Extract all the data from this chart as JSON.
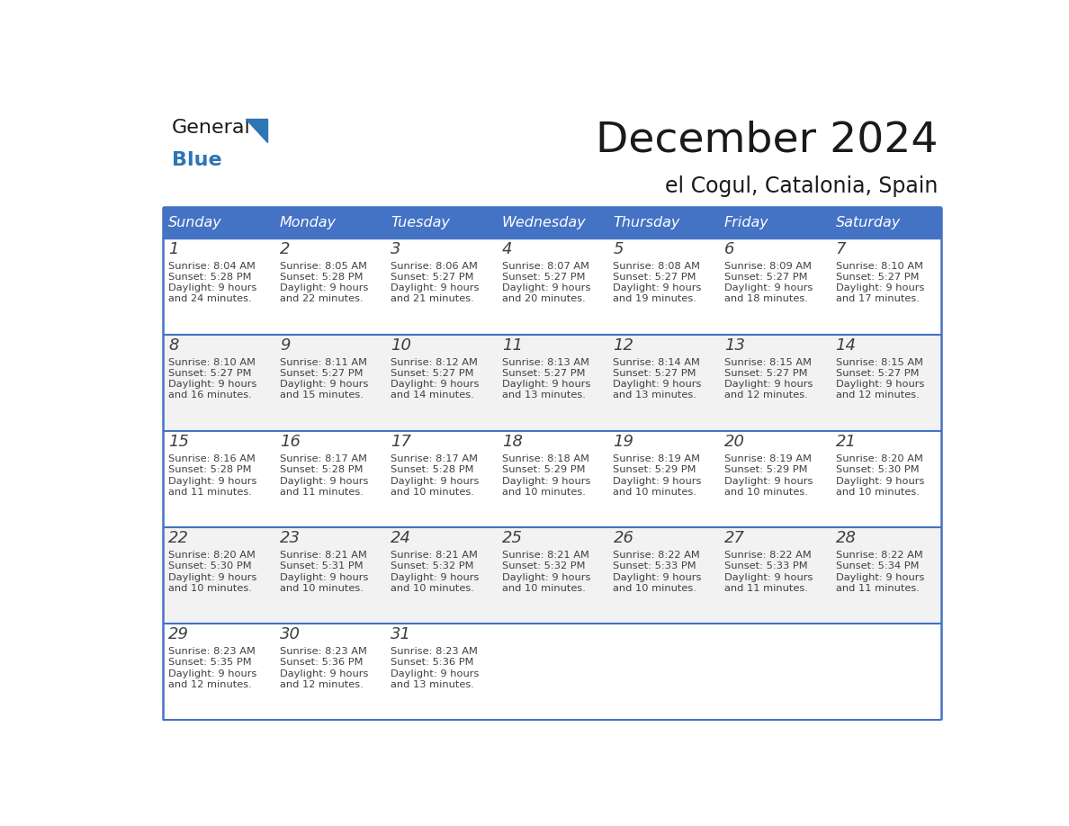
{
  "title": "December 2024",
  "subtitle": "el Cogul, Catalonia, Spain",
  "header_color": "#4472C4",
  "header_text_color": "#FFFFFF",
  "day_names": [
    "Sunday",
    "Monday",
    "Tuesday",
    "Wednesday",
    "Thursday",
    "Friday",
    "Saturday"
  ],
  "weeks": [
    [
      {
        "day": 1,
        "sunrise": "8:04 AM",
        "sunset": "5:28 PM",
        "daylight": "9 hours\nand 24 minutes."
      },
      {
        "day": 2,
        "sunrise": "8:05 AM",
        "sunset": "5:28 PM",
        "daylight": "9 hours\nand 22 minutes."
      },
      {
        "day": 3,
        "sunrise": "8:06 AM",
        "sunset": "5:27 PM",
        "daylight": "9 hours\nand 21 minutes."
      },
      {
        "day": 4,
        "sunrise": "8:07 AM",
        "sunset": "5:27 PM",
        "daylight": "9 hours\nand 20 minutes."
      },
      {
        "day": 5,
        "sunrise": "8:08 AM",
        "sunset": "5:27 PM",
        "daylight": "9 hours\nand 19 minutes."
      },
      {
        "day": 6,
        "sunrise": "8:09 AM",
        "sunset": "5:27 PM",
        "daylight": "9 hours\nand 18 minutes."
      },
      {
        "day": 7,
        "sunrise": "8:10 AM",
        "sunset": "5:27 PM",
        "daylight": "9 hours\nand 17 minutes."
      }
    ],
    [
      {
        "day": 8,
        "sunrise": "8:10 AM",
        "sunset": "5:27 PM",
        "daylight": "9 hours\nand 16 minutes."
      },
      {
        "day": 9,
        "sunrise": "8:11 AM",
        "sunset": "5:27 PM",
        "daylight": "9 hours\nand 15 minutes."
      },
      {
        "day": 10,
        "sunrise": "8:12 AM",
        "sunset": "5:27 PM",
        "daylight": "9 hours\nand 14 minutes."
      },
      {
        "day": 11,
        "sunrise": "8:13 AM",
        "sunset": "5:27 PM",
        "daylight": "9 hours\nand 13 minutes."
      },
      {
        "day": 12,
        "sunrise": "8:14 AM",
        "sunset": "5:27 PM",
        "daylight": "9 hours\nand 13 minutes."
      },
      {
        "day": 13,
        "sunrise": "8:15 AM",
        "sunset": "5:27 PM",
        "daylight": "9 hours\nand 12 minutes."
      },
      {
        "day": 14,
        "sunrise": "8:15 AM",
        "sunset": "5:27 PM",
        "daylight": "9 hours\nand 12 minutes."
      }
    ],
    [
      {
        "day": 15,
        "sunrise": "8:16 AM",
        "sunset": "5:28 PM",
        "daylight": "9 hours\nand 11 minutes."
      },
      {
        "day": 16,
        "sunrise": "8:17 AM",
        "sunset": "5:28 PM",
        "daylight": "9 hours\nand 11 minutes."
      },
      {
        "day": 17,
        "sunrise": "8:17 AM",
        "sunset": "5:28 PM",
        "daylight": "9 hours\nand 10 minutes."
      },
      {
        "day": 18,
        "sunrise": "8:18 AM",
        "sunset": "5:29 PM",
        "daylight": "9 hours\nand 10 minutes."
      },
      {
        "day": 19,
        "sunrise": "8:19 AM",
        "sunset": "5:29 PM",
        "daylight": "9 hours\nand 10 minutes."
      },
      {
        "day": 20,
        "sunrise": "8:19 AM",
        "sunset": "5:29 PM",
        "daylight": "9 hours\nand 10 minutes."
      },
      {
        "day": 21,
        "sunrise": "8:20 AM",
        "sunset": "5:30 PM",
        "daylight": "9 hours\nand 10 minutes."
      }
    ],
    [
      {
        "day": 22,
        "sunrise": "8:20 AM",
        "sunset": "5:30 PM",
        "daylight": "9 hours\nand 10 minutes."
      },
      {
        "day": 23,
        "sunrise": "8:21 AM",
        "sunset": "5:31 PM",
        "daylight": "9 hours\nand 10 minutes."
      },
      {
        "day": 24,
        "sunrise": "8:21 AM",
        "sunset": "5:32 PM",
        "daylight": "9 hours\nand 10 minutes."
      },
      {
        "day": 25,
        "sunrise": "8:21 AM",
        "sunset": "5:32 PM",
        "daylight": "9 hours\nand 10 minutes."
      },
      {
        "day": 26,
        "sunrise": "8:22 AM",
        "sunset": "5:33 PM",
        "daylight": "9 hours\nand 10 minutes."
      },
      {
        "day": 27,
        "sunrise": "8:22 AM",
        "sunset": "5:33 PM",
        "daylight": "9 hours\nand 11 minutes."
      },
      {
        "day": 28,
        "sunrise": "8:22 AM",
        "sunset": "5:34 PM",
        "daylight": "9 hours\nand 11 minutes."
      }
    ],
    [
      {
        "day": 29,
        "sunrise": "8:23 AM",
        "sunset": "5:35 PM",
        "daylight": "9 hours\nand 12 minutes."
      },
      {
        "day": 30,
        "sunrise": "8:23 AM",
        "sunset": "5:36 PM",
        "daylight": "9 hours\nand 12 minutes."
      },
      {
        "day": 31,
        "sunrise": "8:23 AM",
        "sunset": "5:36 PM",
        "daylight": "9 hours\nand 13 minutes."
      },
      null,
      null,
      null,
      null
    ]
  ],
  "logo_general_color": "#1a1a1a",
  "logo_blue_color": "#2e75b6",
  "bg_color": "#FFFFFF",
  "cell_alt_color": "#F2F2F2",
  "border_color": "#4472C4",
  "text_color": "#404040",
  "day_number_color": "#404040"
}
